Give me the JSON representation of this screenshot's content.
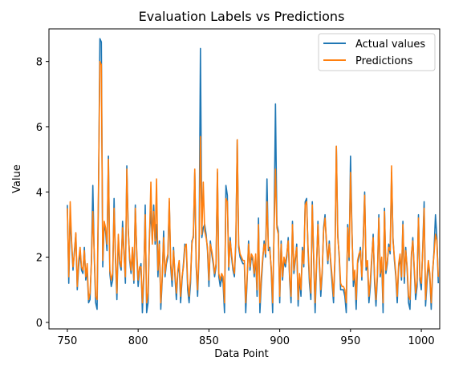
{
  "chart_data": {
    "type": "line",
    "title": "Evaluation Labels vs Predictions",
    "xlabel": "Data Point",
    "ylabel": "Value",
    "xlim": [
      737,
      1013
    ],
    "ylim": [
      -0.2,
      9.0
    ],
    "xticks": [
      750,
      800,
      850,
      900,
      950,
      1000
    ],
    "yticks": [
      0,
      2,
      4,
      6,
      8
    ],
    "legend_position": "top-right",
    "grid": false,
    "x_start": 750,
    "series": [
      {
        "name": "Actual values",
        "color": "#1f77b4",
        "values": [
          3.6,
          1.2,
          3.3,
          2.4,
          1.6,
          2.2,
          2.7,
          1.0,
          1.7,
          2.2,
          1.6,
          1.5,
          2.3,
          1.3,
          1.6,
          0.6,
          0.7,
          1.9,
          4.2,
          2.0,
          0.6,
          0.4,
          3.9,
          8.7,
          8.6,
          1.7,
          3.0,
          2.8,
          2.2,
          5.1,
          1.5,
          1.1,
          1.3,
          3.8,
          1.9,
          0.7,
          2.6,
          1.8,
          1.6,
          3.1,
          2.2,
          1.2,
          4.8,
          2.9,
          1.9,
          1.5,
          2.2,
          1.2,
          3.6,
          2.1,
          1.1,
          1.6,
          1.8,
          0.3,
          1.4,
          3.6,
          0.3,
          0.6,
          2.7,
          3.4,
          2.5,
          3.6,
          2.4,
          3.0,
          1.4,
          2.5,
          0.4,
          1.3,
          2.8,
          1.4,
          1.8,
          2.0,
          3.7,
          1.7,
          1.1,
          2.3,
          1.4,
          0.7,
          1.5,
          1.8,
          0.6,
          1.3,
          1.8,
          2.4,
          2.3,
          1.0,
          0.6,
          1.2,
          2.5,
          2.6,
          4.6,
          1.7,
          0.8,
          2.0,
          8.4,
          2.6,
          2.9,
          3.0,
          2.7,
          2.2,
          1.1,
          2.5,
          2.1,
          1.8,
          1.4,
          1.7,
          4.6,
          1.4,
          1.1,
          1.4,
          1.2,
          0.3,
          4.2,
          3.9,
          1.6,
          2.6,
          2.0,
          1.6,
          1.4,
          2.4,
          5.6,
          2.3,
          2.0,
          1.9,
          1.8,
          1.8,
          0.3,
          1.3,
          2.5,
          1.6,
          2.0,
          1.9,
          1.4,
          2.0,
          0.8,
          3.2,
          0.3,
          1.2,
          1.9,
          2.5,
          2.0,
          4.4,
          2.2,
          2.3,
          1.6,
          0.3,
          2.9,
          6.7,
          3.0,
          2.8,
          0.6,
          2.5,
          1.3,
          1.9,
          1.7,
          2.0,
          2.6,
          1.3,
          0.6,
          3.1,
          1.5,
          1.9,
          2.4,
          0.5,
          1.4,
          0.8,
          2.3,
          1.7,
          3.7,
          3.8,
          2.2,
          1.2,
          0.7,
          3.7,
          1.9,
          0.3,
          1.7,
          3.1,
          1.8,
          0.8,
          1.5,
          2.9,
          3.3,
          2.4,
          1.8,
          2.5,
          1.8,
          1.2,
          0.6,
          1.9,
          5.4,
          2.7,
          2.0,
          1.0,
          1.0,
          1.0,
          0.8,
          0.3,
          3.0,
          1.9,
          5.1,
          2.9,
          1.1,
          1.5,
          0.4,
          1.8,
          2.0,
          2.3,
          1.3,
          2.6,
          4.0,
          1.6,
          1.8,
          0.6,
          1.1,
          1.9,
          2.7,
          1.2,
          0.5,
          1.4,
          3.3,
          1.4,
          1.9,
          0.3,
          3.5,
          1.5,
          1.8,
          2.4,
          2.1,
          4.6,
          2.6,
          1.9,
          1.4,
          0.6,
          1.7,
          2.0,
          1.3,
          3.1,
          1.2,
          2.3,
          1.6,
          0.6,
          0.4,
          2.0,
          2.6,
          1.6,
          0.7,
          1.1,
          3.3,
          1.3,
          1.0,
          2.3,
          3.7,
          0.5,
          1.2,
          1.8,
          1.4,
          0.4,
          1.5,
          2.2,
          3.3,
          2.6,
          1.2
        ]
      },
      {
        "name": "Predictions",
        "color": "#ff7f0e",
        "values": [
          3.5,
          1.4,
          3.7,
          2.5,
          1.7,
          2.1,
          2.75,
          1.1,
          1.9,
          2.3,
          1.7,
          1.6,
          2.2,
          1.4,
          1.8,
          0.7,
          0.9,
          1.8,
          3.4,
          2.1,
          0.8,
          0.7,
          4.2,
          8.0,
          7.9,
          1.9,
          3.1,
          2.9,
          2.4,
          5.0,
          1.6,
          1.3,
          1.5,
          3.5,
          2.0,
          0.9,
          2.7,
          1.9,
          1.7,
          2.9,
          2.1,
          1.4,
          4.7,
          2.8,
          2.0,
          1.6,
          2.3,
          1.3,
          3.5,
          2.2,
          1.3,
          1.7,
          1.7,
          0.6,
          1.5,
          3.3,
          0.6,
          0.9,
          2.6,
          4.3,
          2.4,
          3.4,
          2.5,
          4.4,
          1.6,
          2.4,
          0.6,
          1.4,
          2.6,
          1.5,
          1.9,
          2.1,
          3.8,
          1.8,
          1.3,
          2.2,
          1.5,
          0.9,
          1.6,
          1.9,
          0.8,
          1.4,
          1.7,
          2.3,
          2.4,
          1.2,
          0.8,
          1.4,
          2.4,
          2.7,
          4.7,
          1.8,
          1.0,
          2.1,
          5.7,
          2.7,
          4.3,
          2.8,
          2.6,
          2.3,
          1.3,
          2.4,
          2.2,
          1.9,
          1.5,
          1.8,
          4.7,
          1.5,
          1.3,
          1.5,
          1.4,
          0.6,
          3.8,
          3.7,
          1.7,
          2.5,
          2.1,
          1.7,
          1.5,
          2.5,
          5.6,
          2.4,
          2.1,
          2.0,
          1.9,
          1.9,
          0.6,
          1.4,
          2.4,
          1.7,
          2.1,
          2.0,
          1.5,
          2.1,
          1.0,
          3.0,
          0.6,
          1.4,
          2.0,
          2.4,
          2.1,
          3.7,
          2.3,
          2.2,
          1.7,
          0.6,
          2.8,
          4.7,
          2.9,
          2.7,
          0.8,
          2.4,
          1.4,
          2.0,
          1.8,
          2.1,
          2.5,
          1.4,
          0.8,
          3.0,
          1.6,
          2.0,
          2.3,
          0.7,
          1.5,
          1.0,
          2.2,
          1.8,
          3.6,
          3.7,
          2.3,
          1.4,
          0.9,
          3.6,
          2.0,
          0.6,
          1.8,
          3.0,
          1.9,
          1.0,
          1.6,
          2.8,
          3.2,
          2.5,
          1.9,
          2.4,
          1.9,
          1.4,
          0.8,
          2.0,
          5.4,
          2.6,
          2.1,
          1.2,
          1.1,
          1.1,
          1.0,
          0.6,
          2.9,
          2.0,
          4.6,
          2.8,
          1.3,
          1.6,
          0.7,
          1.9,
          2.1,
          2.2,
          1.4,
          2.5,
          3.9,
          1.7,
          1.9,
          0.8,
          1.3,
          2.0,
          2.6,
          1.4,
          0.7,
          1.5,
          3.2,
          1.5,
          2.0,
          0.6,
          3.4,
          1.6,
          1.9,
          2.3,
          2.2,
          4.8,
          2.5,
          2.0,
          1.5,
          0.8,
          1.8,
          2.1,
          1.4,
          3.0,
          1.4,
          2.2,
          1.7,
          0.8,
          0.7,
          2.1,
          2.5,
          1.7,
          0.9,
          1.3,
          3.2,
          1.4,
          1.2,
          2.2,
          3.5,
          0.7,
          1.4,
          1.9,
          1.5,
          0.6,
          1.6,
          2.1,
          2.7,
          2.5,
          1.4
        ]
      }
    ]
  }
}
